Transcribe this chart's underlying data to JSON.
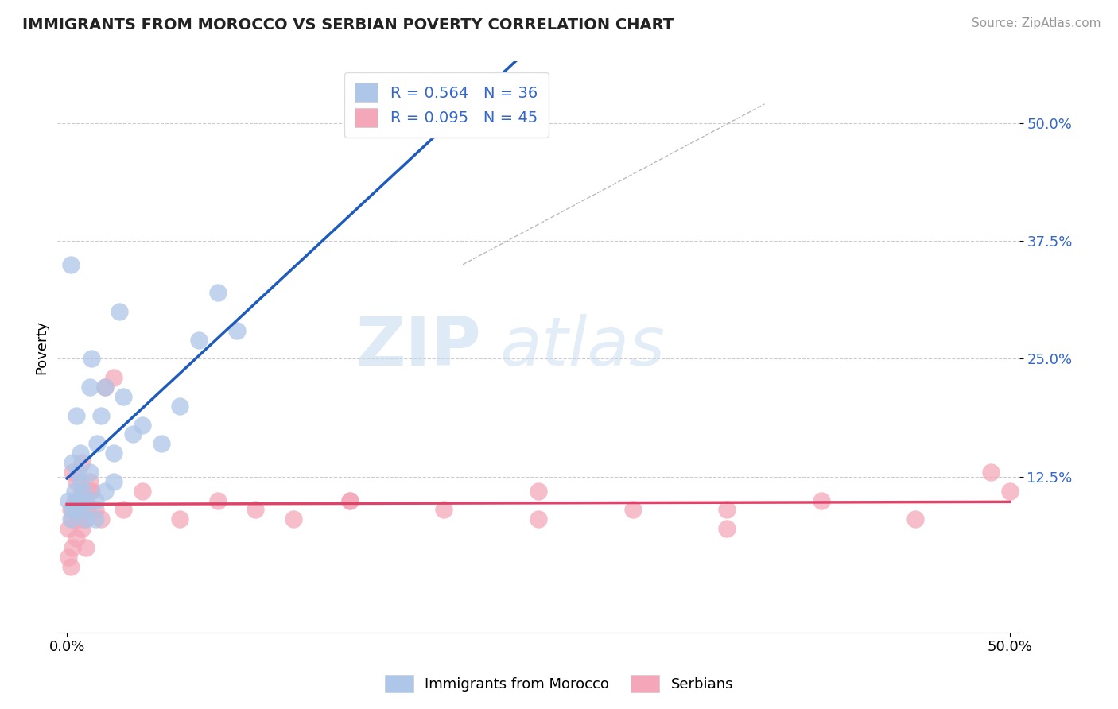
{
  "title": "IMMIGRANTS FROM MOROCCO VS SERBIAN POVERTY CORRELATION CHART",
  "source": "Source: ZipAtlas.com",
  "ylabel": "Poverty",
  "ytick_labels": [
    "50.0%",
    "37.5%",
    "25.0%",
    "12.5%"
  ],
  "ytick_values": [
    0.5,
    0.375,
    0.25,
    0.125
  ],
  "xlim": [
    -0.005,
    0.505
  ],
  "ylim": [
    -0.04,
    0.565
  ],
  "morocco_R": 0.564,
  "morocco_N": 36,
  "serbian_R": 0.095,
  "serbian_N": 45,
  "morocco_color": "#aec6e8",
  "serbian_color": "#f4a7b9",
  "morocco_line_color": "#1f5bbd",
  "serbian_line_color": "#e0436a",
  "watermark_zip": "ZIP",
  "watermark_atlas": "atlas",
  "legend_label_morocco": "Immigrants from Morocco",
  "legend_label_serbian": "Serbians",
  "morocco_scatter_x": [
    0.001,
    0.002,
    0.003,
    0.004,
    0.005,
    0.006,
    0.007,
    0.008,
    0.009,
    0.01,
    0.012,
    0.013,
    0.015,
    0.016,
    0.018,
    0.02,
    0.025,
    0.028,
    0.03,
    0.035,
    0.04,
    0.05,
    0.06,
    0.07,
    0.08,
    0.09,
    0.003,
    0.005,
    0.007,
    0.01,
    0.012,
    0.015,
    0.002,
    0.004,
    0.02,
    0.025
  ],
  "morocco_scatter_y": [
    0.1,
    0.08,
    0.09,
    0.11,
    0.1,
    0.13,
    0.12,
    0.09,
    0.11,
    0.1,
    0.22,
    0.25,
    0.08,
    0.16,
    0.19,
    0.11,
    0.12,
    0.3,
    0.21,
    0.17,
    0.18,
    0.16,
    0.2,
    0.27,
    0.32,
    0.28,
    0.14,
    0.19,
    0.15,
    0.08,
    0.13,
    0.1,
    0.35,
    0.09,
    0.22,
    0.15
  ],
  "serbian_scatter_x": [
    0.001,
    0.002,
    0.003,
    0.004,
    0.005,
    0.006,
    0.007,
    0.008,
    0.009,
    0.01,
    0.011,
    0.012,
    0.013,
    0.015,
    0.018,
    0.02,
    0.025,
    0.03,
    0.04,
    0.06,
    0.08,
    0.1,
    0.12,
    0.15,
    0.2,
    0.25,
    0.003,
    0.005,
    0.008,
    0.012,
    0.35,
    0.4,
    0.45,
    0.49,
    0.001,
    0.002,
    0.003,
    0.005,
    0.008,
    0.01,
    0.15,
    0.25,
    0.3,
    0.35,
    0.5
  ],
  "serbian_scatter_y": [
    0.07,
    0.09,
    0.08,
    0.1,
    0.09,
    0.08,
    0.1,
    0.11,
    0.08,
    0.1,
    0.09,
    0.12,
    0.11,
    0.09,
    0.08,
    0.22,
    0.23,
    0.09,
    0.11,
    0.08,
    0.1,
    0.09,
    0.08,
    0.1,
    0.09,
    0.11,
    0.13,
    0.12,
    0.14,
    0.11,
    0.09,
    0.1,
    0.08,
    0.13,
    0.04,
    0.03,
    0.05,
    0.06,
    0.07,
    0.05,
    0.1,
    0.08,
    0.09,
    0.07,
    0.11
  ],
  "morocco_line_x": [
    0.0,
    0.28
  ],
  "serbian_line_x": [
    0.0,
    0.5
  ],
  "dashed_line_x": [
    0.21,
    0.37
  ],
  "dashed_line_y": [
    0.35,
    0.52
  ]
}
